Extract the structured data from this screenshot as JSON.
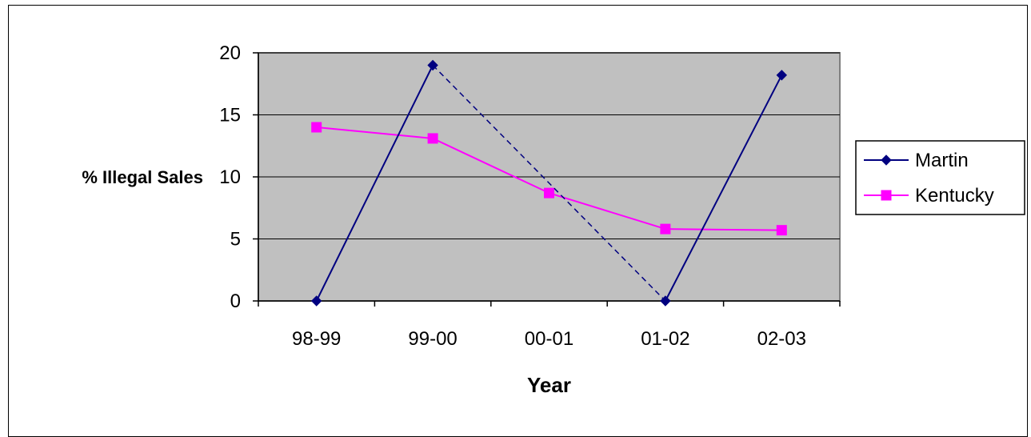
{
  "chart_data": {
    "type": "line",
    "title": "",
    "xlabel": "Year",
    "ylabel": "% Illegal Sales",
    "categories": [
      "98-99",
      "99-00",
      "00-01",
      "01-02",
      "02-03"
    ],
    "ylim": [
      0,
      20
    ],
    "yticks": [
      0,
      5,
      10,
      15,
      20
    ],
    "grid": true,
    "plot_background": "#c0c0c0",
    "legend_position": "right",
    "series": [
      {
        "name": "Martin",
        "values": [
          0,
          19,
          null,
          0,
          18.2
        ],
        "color": "#000080",
        "marker": "diamond",
        "gap_style": "dashed"
      },
      {
        "name": "Kentucky",
        "values": [
          14,
          13.1,
          8.7,
          5.8,
          5.7
        ],
        "color": "#ff00ff",
        "marker": "square"
      }
    ]
  }
}
